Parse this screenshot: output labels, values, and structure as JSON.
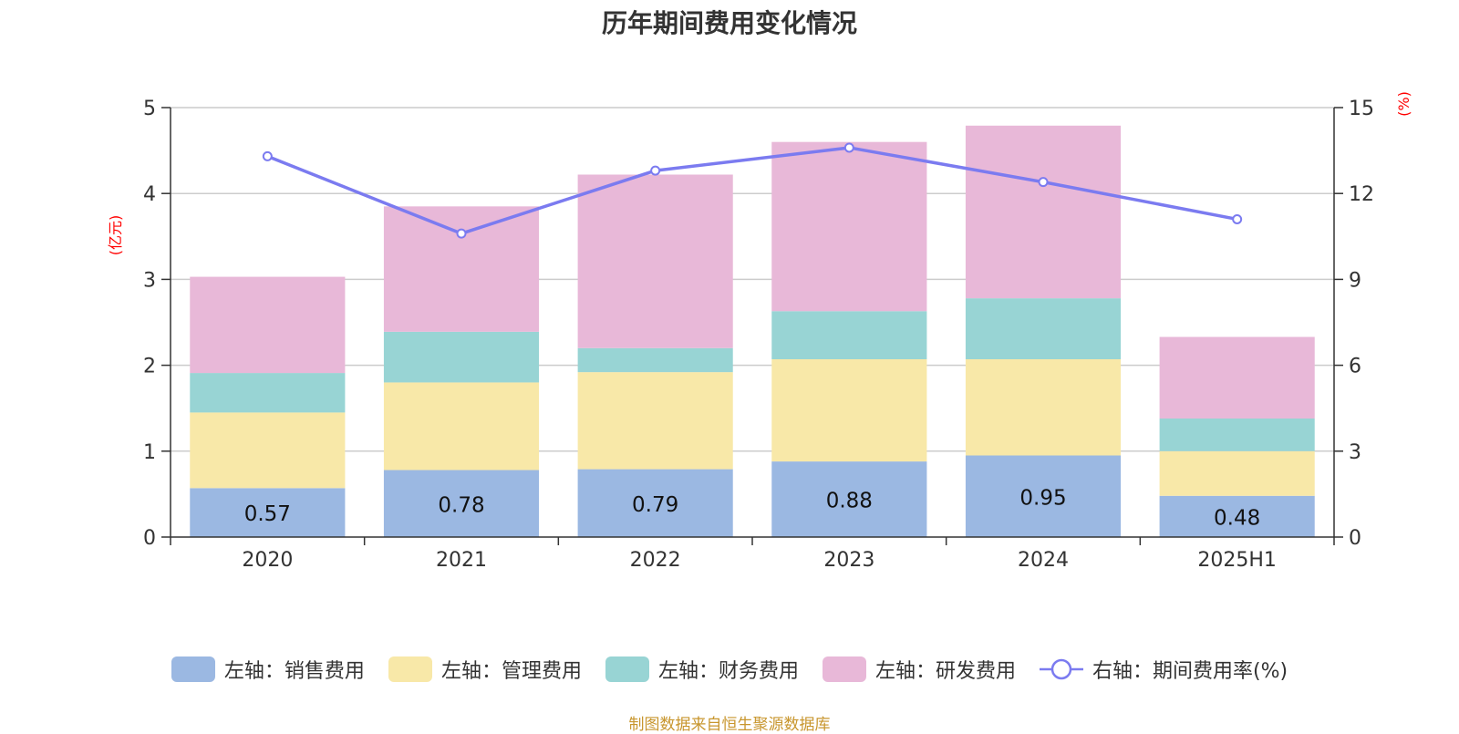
{
  "chart_data": {
    "type": "bar",
    "title": "历年期间费用变化情况",
    "categories": [
      "2020",
      "2021",
      "2022",
      "2023",
      "2024",
      "2025H1"
    ],
    "left_axis": {
      "unit": "(亿元)",
      "ylim": [
        0,
        5
      ],
      "ticks": [
        "0",
        "1",
        "2",
        "3",
        "4",
        "5"
      ]
    },
    "right_axis": {
      "unit": "(%)",
      "ylim": [
        0,
        15
      ],
      "ticks": [
        "0",
        "3",
        "6",
        "9",
        "12",
        "15"
      ]
    },
    "stacked": true,
    "series": [
      {
        "name": "左轴：销售费用",
        "type": "bar",
        "axis": "left",
        "color": "#9bb8e2",
        "values": [
          0.57,
          0.78,
          0.79,
          0.88,
          0.95,
          0.48
        ],
        "labels_shown": true
      },
      {
        "name": "左轴：管理费用",
        "type": "bar",
        "axis": "left",
        "color": "#f8e8a8",
        "values": [
          0.88,
          1.02,
          1.13,
          1.19,
          1.12,
          0.52
        ]
      },
      {
        "name": "左轴：财务费用",
        "type": "bar",
        "axis": "left",
        "color": "#98d4d4",
        "values": [
          0.46,
          0.59,
          0.28,
          0.56,
          0.71,
          0.38
        ]
      },
      {
        "name": "左轴：研发费用",
        "type": "bar",
        "axis": "left",
        "color": "#e8b8d8",
        "values": [
          1.12,
          1.46,
          2.02,
          1.97,
          2.01,
          0.95
        ]
      },
      {
        "name": "右轴：期间费用率(%)",
        "type": "line",
        "axis": "right",
        "color": "#7b7bf0",
        "values": [
          13.3,
          10.6,
          12.8,
          13.6,
          12.4,
          11.1
        ]
      }
    ],
    "grid": true,
    "legend_position": "bottom"
  },
  "source_text": "制图数据来自恒生聚源数据库"
}
